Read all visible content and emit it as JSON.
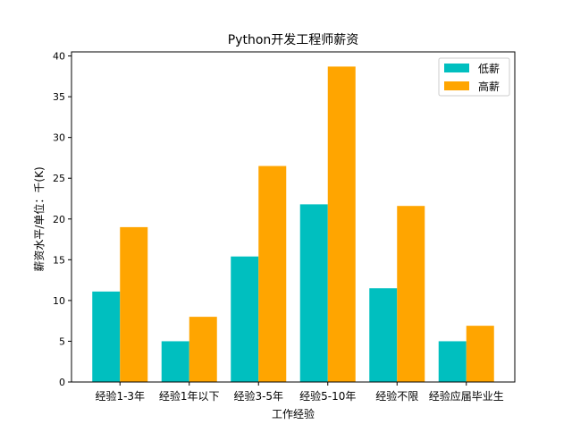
{
  "chart_data": {
    "type": "bar",
    "title": "Python开发工程师薪资",
    "xlabel": "工作经验",
    "ylabel": "薪资水平/单位：千(K)",
    "categories": [
      "经验1-3年",
      "经验1年以下",
      "经验3-5年",
      "经验5-10年",
      "经验不限",
      "经验应届毕业生"
    ],
    "series": [
      {
        "name": "低薪",
        "color": "#00bfbf",
        "values": [
          11.1,
          5.0,
          15.4,
          21.8,
          11.5,
          5.0
        ]
      },
      {
        "name": "高薪",
        "color": "#ffa500",
        "values": [
          19.0,
          8.0,
          26.5,
          38.7,
          21.6,
          6.9
        ]
      }
    ],
    "ylim": [
      0,
      40.5
    ],
    "yticks": [
      0,
      5,
      10,
      15,
      20,
      25,
      30,
      35,
      40
    ],
    "legend_position": "top-right",
    "grid": false
  }
}
